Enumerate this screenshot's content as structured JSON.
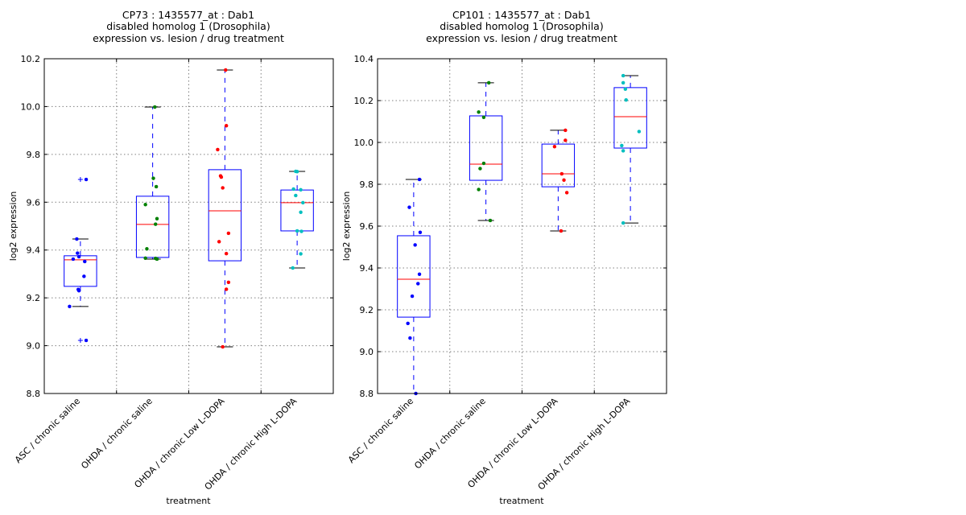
{
  "chart_data": [
    {
      "type": "box",
      "title": [
        "CP73 : 1435577_at : Dab1",
        "disabled homolog 1 (Drosophila)",
        "expression vs. lesion / drug treatment"
      ],
      "xlabel": "treatment",
      "ylabel": "log2 expression",
      "ylim": [
        8.8,
        10.2
      ],
      "yticks": [
        "8.8",
        "9.0",
        "9.2",
        "9.4",
        "9.6",
        "9.8",
        "10.0",
        "10.2"
      ],
      "grid": true,
      "categories": [
        "ASC / chronic saline",
        "OHDA / chronic saline",
        "OHDA / chronic Low L-DOPA",
        "OHDA / chronic High L-DOPA"
      ],
      "point_colors": [
        "#0000ff",
        "#008000",
        "#ff0000",
        "#00bfbf"
      ],
      "boxes": [
        {
          "whisker_low": 9.164,
          "q1": 9.248,
          "median": 9.359,
          "q3": 9.376,
          "whisker_high": 9.446,
          "fliers": [
            9.695,
            9.022
          ]
        },
        {
          "whisker_low": 9.362,
          "q1": 9.369,
          "median": 9.507,
          "q3": 9.625,
          "whisker_high": 9.998,
          "fliers": []
        },
        {
          "whisker_low": 8.995,
          "q1": 9.355,
          "median": 9.564,
          "q3": 9.736,
          "whisker_high": 10.153,
          "fliers": []
        },
        {
          "whisker_low": 9.325,
          "q1": 9.48,
          "median": 9.598,
          "q3": 9.651,
          "whisker_high": 9.729,
          "fliers": []
        }
      ],
      "points": [
        [
          [
            -0.05,
            9.446
          ],
          [
            0.08,
            9.695
          ],
          [
            0.08,
            9.022
          ],
          [
            -0.04,
            9.387
          ],
          [
            -0.02,
            9.372
          ],
          [
            0.06,
            9.352
          ],
          [
            -0.1,
            9.362
          ],
          [
            0.05,
            9.29
          ],
          [
            -0.03,
            9.235
          ],
          [
            -0.02,
            9.23
          ],
          [
            -0.15,
            9.164
          ]
        ],
        [
          [
            0.03,
            9.998
          ],
          [
            0.01,
            9.7
          ],
          [
            0.05,
            9.665
          ],
          [
            -0.1,
            9.59
          ],
          [
            0.06,
            9.531
          ],
          [
            0.04,
            9.508
          ],
          [
            -0.08,
            9.405
          ],
          [
            -0.1,
            9.366
          ],
          [
            0.06,
            9.362
          ],
          [
            0.04,
            9.365
          ]
        ],
        [
          [
            0.01,
            10.153
          ],
          [
            0.02,
            9.92
          ],
          [
            -0.1,
            9.82
          ],
          [
            -0.06,
            9.71
          ],
          [
            -0.05,
            9.705
          ],
          [
            -0.03,
            9.66
          ],
          [
            0.05,
            9.47
          ],
          [
            -0.08,
            9.435
          ],
          [
            0.02,
            9.385
          ],
          [
            0.05,
            9.265
          ],
          [
            0.02,
            9.236
          ],
          [
            -0.03,
            8.995
          ]
        ],
        [
          [
            -0.02,
            9.729
          ],
          [
            0.0,
            9.728
          ],
          [
            -0.05,
            9.655
          ],
          [
            0.05,
            9.652
          ],
          [
            -0.02,
            9.628
          ],
          [
            0.08,
            9.598
          ],
          [
            0.05,
            9.558
          ],
          [
            0.0,
            9.48
          ],
          [
            0.06,
            9.478
          ],
          [
            0.05,
            9.384
          ],
          [
            -0.06,
            9.325
          ]
        ]
      ]
    },
    {
      "type": "box",
      "title": [
        "CP101 : 1435577_at : Dab1",
        "disabled homolog 1 (Drosophila)",
        "expression vs. lesion / drug treatment"
      ],
      "xlabel": "treatment",
      "ylabel": "log2 expression",
      "ylim": [
        8.8,
        10.4
      ],
      "yticks": [
        "8.8",
        "9.0",
        "9.2",
        "9.4",
        "9.6",
        "9.8",
        "10.0",
        "10.2",
        "10.4"
      ],
      "grid": true,
      "categories": [
        "ASC / chronic saline",
        "OHDA / chronic saline",
        "OHDA / chronic Low L-DOPA",
        "OHDA / chronic High L-DOPA"
      ],
      "point_colors": [
        "#0000ff",
        "#008000",
        "#ff0000",
        "#00bfbf"
      ],
      "boxes": [
        {
          "whisker_low": 8.8,
          "q1": 9.165,
          "median": 9.346,
          "q3": 9.554,
          "whisker_high": 9.823,
          "fliers": []
        },
        {
          "whisker_low": 9.627,
          "q1": 9.819,
          "median": 9.896,
          "q3": 10.127,
          "whisker_high": 10.285,
          "fliers": []
        },
        {
          "whisker_low": 9.577,
          "q1": 9.788,
          "median": 9.85,
          "q3": 9.992,
          "whisker_high": 10.058,
          "fliers": []
        },
        {
          "whisker_low": 9.615,
          "q1": 9.973,
          "median": 10.123,
          "q3": 10.262,
          "whisker_high": 10.319,
          "fliers": []
        }
      ],
      "points": [
        [
          [
            0.08,
            9.823
          ],
          [
            -0.06,
            9.69
          ],
          [
            0.09,
            9.57
          ],
          [
            0.02,
            9.51
          ],
          [
            0.08,
            9.37
          ],
          [
            0.06,
            9.325
          ],
          [
            -0.02,
            9.265
          ],
          [
            -0.08,
            9.135
          ],
          [
            -0.05,
            9.065
          ],
          [
            0.03,
            8.8
          ]
        ],
        [
          [
            0.04,
            10.285
          ],
          [
            -0.1,
            10.145
          ],
          [
            -0.03,
            10.12
          ],
          [
            -0.03,
            9.9
          ],
          [
            -0.08,
            9.875
          ],
          [
            -0.1,
            9.775
          ],
          [
            0.06,
            9.627
          ]
        ],
        [
          [
            0.1,
            10.058
          ],
          [
            0.1,
            10.01
          ],
          [
            -0.05,
            9.98
          ],
          [
            0.05,
            9.85
          ],
          [
            0.08,
            9.82
          ],
          [
            0.12,
            9.76
          ],
          [
            0.04,
            9.577
          ]
        ],
        [
          [
            -0.1,
            10.319
          ],
          [
            -0.1,
            10.285
          ],
          [
            -0.07,
            10.255
          ],
          [
            -0.06,
            10.203
          ],
          [
            0.12,
            10.052
          ],
          [
            -0.12,
            9.985
          ],
          [
            -0.1,
            9.96
          ],
          [
            -0.1,
            9.615
          ]
        ]
      ]
    }
  ]
}
